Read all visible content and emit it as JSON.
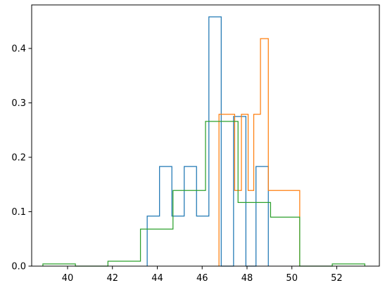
{
  "chart_data": {
    "type": "histogram",
    "title": "",
    "xlabel": "",
    "ylabel": "",
    "xlim": [
      38.4,
      53.9
    ],
    "ylim": [
      0,
      0.48
    ],
    "grid": false,
    "histtype": "step",
    "xticks": [
      40,
      42,
      44,
      46,
      48,
      50,
      52
    ],
    "yticks": [
      0.0,
      0.1,
      0.2,
      0.3,
      0.4
    ],
    "xtick_labels": [
      "40",
      "42",
      "44",
      "46",
      "48",
      "50",
      "52"
    ],
    "ytick_labels": [
      "0.0",
      "0.1",
      "0.2",
      "0.3",
      "0.4"
    ],
    "series": [
      {
        "color": "#1f77b4",
        "bin_edges": [
          43.55,
          44.1,
          44.65,
          45.2,
          45.75,
          46.3,
          46.85,
          47.4,
          47.95,
          48.4,
          48.95
        ],
        "heights": [
          0.092,
          0.183,
          0.092,
          0.183,
          0.092,
          0.458,
          0.0,
          0.275,
          0.0,
          0.183
        ]
      },
      {
        "color": "#ff7f0e",
        "bin_edges": [
          46.75,
          47.45,
          47.75,
          48.05,
          48.3,
          48.6,
          48.95,
          49.95,
          50.35
        ],
        "heights": [
          0.279,
          0.139,
          0.279,
          0.139,
          0.279,
          0.418,
          0.139,
          0.139
        ]
      },
      {
        "color": "#2ca02c",
        "bin_edges": [
          38.9,
          40.35,
          41.8,
          43.25,
          44.7,
          46.15,
          47.6,
          49.05,
          50.35,
          51.8,
          53.25
        ],
        "heights": [
          0.004,
          0.0,
          0.009,
          0.068,
          0.139,
          0.266,
          0.117,
          0.09,
          0.0,
          0.004
        ]
      }
    ]
  }
}
